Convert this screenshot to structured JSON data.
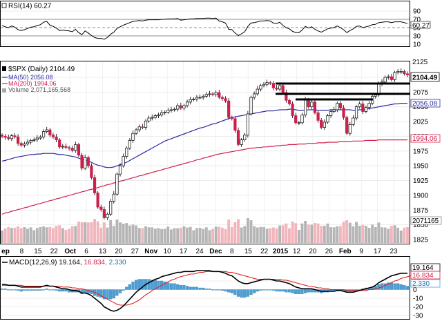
{
  "colors": {
    "up_candle": "#ffffff",
    "down_candle": "#cc1f4a",
    "ma50": "#2a2aa0",
    "ma200": "#d21f4a",
    "volume_up": "#a8a8a8",
    "volume_down": "#f0a8b0",
    "macd_line": "#000000",
    "signal_line": "#e02020",
    "histogram": "#4a9fd6",
    "rsi_line": "#000000"
  },
  "rsi_panel": {
    "label": "RSI(14) 60.27",
    "current_value_label": "60.27",
    "ticks": [
      "90",
      "70",
      "50",
      "30",
      "10"
    ]
  },
  "price_panel": {
    "legend_symbol": "$SPX (Daily) 2104.49",
    "legend_ma50": "MA(50) 2056.08",
    "legend_ma200": "MA(200) 1994.06",
    "legend_volume": "Volume 2,071,165,568",
    "last_price_label": "2104.49",
    "ma50_label": "2056.08",
    "ma200_label": "1994.06",
    "volume_label": "2071165",
    "partial_top_tick": "2125",
    "ticks": [
      "2100",
      "2075",
      "2050",
      "2025",
      "2000",
      "1975",
      "1950",
      "1925",
      "1900",
      "1875",
      "1850",
      "1825"
    ]
  },
  "x_axis": {
    "labels": [
      {
        "text": "ep",
        "bold": true
      },
      {
        "text": "8",
        "bold": false
      },
      {
        "text": "15",
        "bold": false
      },
      {
        "text": "22",
        "bold": false
      },
      {
        "text": "Oct",
        "bold": true
      },
      {
        "text": "6",
        "bold": false
      },
      {
        "text": "13",
        "bold": false
      },
      {
        "text": "20",
        "bold": false
      },
      {
        "text": "27",
        "bold": false
      },
      {
        "text": "Nov",
        "bold": true
      },
      {
        "text": "10",
        "bold": false
      },
      {
        "text": "17",
        "bold": false
      },
      {
        "text": "24",
        "bold": false
      },
      {
        "text": "Dec",
        "bold": true
      },
      {
        "text": "8",
        "bold": false
      },
      {
        "text": "15",
        "bold": false
      },
      {
        "text": "22",
        "bold": false
      },
      {
        "text": "2015",
        "bold": true
      },
      {
        "text": "12",
        "bold": false
      },
      {
        "text": "20",
        "bold": false
      },
      {
        "text": "26",
        "bold": false
      },
      {
        "text": "Feb",
        "bold": true
      },
      {
        "text": "9",
        "bold": false
      },
      {
        "text": "17",
        "bold": false
      },
      {
        "text": "23",
        "bold": false
      }
    ]
  },
  "macd_panel": {
    "label": "MACD(12,26,9) 19.164, 16.834, 2.330",
    "label_name": "MACD(12,26,9)",
    "label_macd": "19.164,",
    "label_signal": "16.834,",
    "label_hist": "2.330",
    "macd_value_label": "19.164",
    "signal_value_label": "16.834",
    "hist_value_label": "2.330",
    "ticks": [
      "10",
      "0",
      "-10",
      "-20",
      "-30"
    ]
  },
  "chart_data": {
    "type": "candlestick",
    "title": "$SPX (Daily) 2104.49",
    "period": "Sep 2014 – Feb 2015",
    "ylim": [
      1810,
      2125
    ],
    "close": [
      2000,
      1998,
      1996,
      2001,
      1999,
      1988,
      1985,
      1987,
      1990,
      1993,
      1994,
      1997,
      1999,
      2008,
      2011,
      2002,
      1999,
      1994,
      1982,
      1983,
      1981,
      1980,
      1976,
      1986,
      1968,
      1946,
      1964,
      1950,
      1930,
      1904,
      1880,
      1876,
      1862,
      1868,
      1890,
      1902,
      1936,
      1950,
      1966,
      1980,
      1993,
      2005,
      2011,
      2016,
      2015,
      2026,
      2031,
      2032,
      2035,
      2036,
      2040,
      2041,
      2044,
      2045,
      2046,
      2052,
      2048,
      2052,
      2058,
      2062,
      2063,
      2066,
      2066,
      2068,
      2071,
      2072,
      2071,
      2074,
      2066,
      2064,
      2060,
      2032,
      2030,
      2010,
      1986,
      1994,
      2002,
      2038,
      2066,
      2072,
      2080,
      2086,
      2088,
      2091,
      2090,
      2082,
      2080,
      2086,
      2074,
      2061,
      2055,
      2035,
      2023,
      2023,
      2036,
      2062,
      2050,
      2058,
      2040,
      2027,
      2015,
      2024,
      2035,
      2042,
      2045,
      2056,
      2048,
      2032,
      2005,
      2020,
      2031,
      2050,
      2055,
      2042,
      2049,
      2056,
      2068,
      2070,
      2089,
      2092,
      2100,
      2101,
      2096,
      2108,
      2110,
      2110,
      2106,
      2104
    ],
    "ma50": [
      1958,
      1959,
      1961,
      1962,
      1964,
      1965,
      1966,
      1967,
      1968,
      1969,
      1969,
      1970,
      1970,
      1971,
      1971,
      1971,
      1971,
      1970,
      1969,
      1969,
      1968,
      1967,
      1966,
      1965,
      1963,
      1961,
      1960,
      1958,
      1956,
      1953,
      1951,
      1950,
      1948,
      1947,
      1947,
      1948,
      1950,
      1952,
      1954,
      1956,
      1959,
      1962,
      1965,
      1968,
      1971,
      1974,
      1977,
      1980,
      1983,
      1986,
      1989,
      1992,
      1994,
      1996,
      1998,
      2000,
      2002,
      2004,
      2006,
      2008,
      2010,
      2012,
      2014,
      2015,
      2017,
      2019,
      2021,
      2022,
      2024,
      2026,
      2028,
      2030,
      2032,
      2033,
      2034,
      2035,
      2036,
      2037,
      2038,
      2039,
      2040,
      2041,
      2042,
      2043,
      2043,
      2043,
      2044,
      2045,
      2045,
      2045,
      2046,
      2046,
      2045,
      2044,
      2044,
      2044,
      2045,
      2045,
      2045,
      2044,
      2044,
      2044,
      2044,
      2045,
      2045,
      2045,
      2045,
      2045,
      2045,
      2045,
      2044,
      2044,
      2045,
      2045,
      2046,
      2047,
      2048,
      2049,
      2050,
      2051,
      2052,
      2053,
      2054,
      2055,
      2055,
      2056,
      2056,
      2056
    ],
    "ma200": [
      1868,
      1870,
      1871,
      1873,
      1874,
      1876,
      1877,
      1879,
      1880,
      1882,
      1883,
      1885,
      1886,
      1888,
      1889,
      1891,
      1892,
      1894,
      1895,
      1897,
      1898,
      1900,
      1901,
      1903,
      1904,
      1906,
      1907,
      1909,
      1910,
      1912,
      1913,
      1915,
      1916,
      1918,
      1919,
      1921,
      1922,
      1924,
      1925,
      1927,
      1928,
      1930,
      1931,
      1933,
      1934,
      1936,
      1937,
      1939,
      1940,
      1942,
      1943,
      1945,
      1946,
      1948,
      1949,
      1951,
      1952,
      1954,
      1955,
      1957,
      1958,
      1960,
      1961,
      1963,
      1964,
      1966,
      1967,
      1969,
      1970,
      1971,
      1972,
      1973,
      1974,
      1975,
      1976,
      1977,
      1978,
      1979,
      1980,
      1980,
      1981,
      1981,
      1982,
      1982,
      1983,
      1983,
      1984,
      1984,
      1985,
      1985,
      1986,
      1986,
      1986,
      1987,
      1987,
      1987,
      1988,
      1988,
      1988,
      1989,
      1989,
      1989,
      1990,
      1990,
      1990,
      1990,
      1991,
      1991,
      1991,
      1991,
      1992,
      1992,
      1992,
      1992,
      1993,
      1993,
      1993,
      1993,
      1994,
      1994,
      1994,
      1994,
      1994,
      1994,
      1994,
      1994,
      1994,
      1994
    ],
    "rsi": [
      55,
      52,
      50,
      54,
      51,
      45,
      43,
      45,
      48,
      51,
      52,
      55,
      57,
      63,
      65,
      56,
      53,
      49,
      43,
      44,
      43,
      42,
      40,
      46,
      38,
      33,
      42,
      37,
      31,
      26,
      24,
      24,
      22,
      26,
      34,
      39,
      48,
      52,
      56,
      59,
      62,
      65,
      66,
      67,
      66,
      68,
      69,
      69,
      69,
      69,
      70,
      70,
      71,
      71,
      71,
      72,
      68,
      69,
      70,
      71,
      71,
      72,
      72,
      72,
      73,
      73,
      72,
      73,
      66,
      64,
      61,
      46,
      45,
      37,
      31,
      35,
      40,
      53,
      61,
      62,
      64,
      66,
      66,
      67,
      66,
      61,
      60,
      63,
      55,
      50,
      47,
      41,
      38,
      38,
      44,
      53,
      49,
      52,
      46,
      42,
      39,
      43,
      47,
      49,
      50,
      54,
      50,
      45,
      38,
      43,
      47,
      53,
      54,
      50,
      52,
      54,
      57,
      58,
      62,
      63,
      64,
      64,
      62,
      64,
      64,
      64,
      62,
      60
    ],
    "macd": [
      6,
      6,
      5,
      5,
      5,
      4,
      3,
      3,
      3,
      3,
      3,
      3,
      3,
      4,
      5,
      4,
      4,
      3,
      2,
      1,
      1,
      0,
      -1,
      -1,
      -2,
      -4,
      -4,
      -5,
      -7,
      -10,
      -13,
      -16,
      -20,
      -22,
      -24,
      -25,
      -24,
      -22,
      -19,
      -15,
      -11,
      -7,
      -3,
      0,
      3,
      6,
      8,
      10,
      12,
      13,
      15,
      16,
      17,
      18,
      19,
      20,
      20,
      21,
      21,
      21,
      21,
      22,
      22,
      22,
      22,
      22,
      21,
      21,
      21,
      20,
      19,
      17,
      16,
      13,
      10,
      8,
      7,
      7,
      8,
      9,
      10,
      11,
      12,
      12,
      12,
      11,
      10,
      10,
      9,
      8,
      7,
      5,
      3,
      2,
      1,
      1,
      1,
      1,
      0,
      -1,
      -2,
      -2,
      -2,
      -2,
      -2,
      -1,
      -1,
      -2,
      -3,
      -3,
      -3,
      -2,
      -1,
      0,
      1,
      2,
      3,
      5,
      8,
      10,
      12,
      14,
      16,
      17,
      18,
      19,
      19,
      19
    ],
    "signal": [
      5,
      5,
      5,
      5,
      5,
      5,
      5,
      4,
      4,
      4,
      4,
      4,
      4,
      4,
      4,
      4,
      4,
      4,
      4,
      3,
      3,
      3,
      2,
      2,
      1,
      1,
      0,
      -1,
      -2,
      -3,
      -5,
      -7,
      -9,
      -11,
      -13,
      -15,
      -17,
      -18,
      -18,
      -18,
      -17,
      -16,
      -14,
      -12,
      -9,
      -6,
      -4,
      -1,
      1,
      3,
      5,
      7,
      9,
      11,
      12,
      14,
      15,
      16,
      17,
      18,
      18,
      19,
      20,
      20,
      21,
      21,
      21,
      21,
      21,
      21,
      21,
      20,
      20,
      19,
      18,
      17,
      16,
      15,
      14,
      13,
      12,
      12,
      12,
      12,
      12,
      12,
      12,
      12,
      11,
      11,
      10,
      9,
      8,
      7,
      6,
      5,
      4,
      4,
      3,
      2,
      2,
      1,
      1,
      0,
      0,
      0,
      0,
      0,
      -1,
      -1,
      -1,
      -1,
      -1,
      -1,
      -1,
      0,
      0,
      1,
      2,
      3,
      5,
      6,
      8,
      10,
      11,
      13,
      14,
      15,
      16,
      17
    ]
  }
}
